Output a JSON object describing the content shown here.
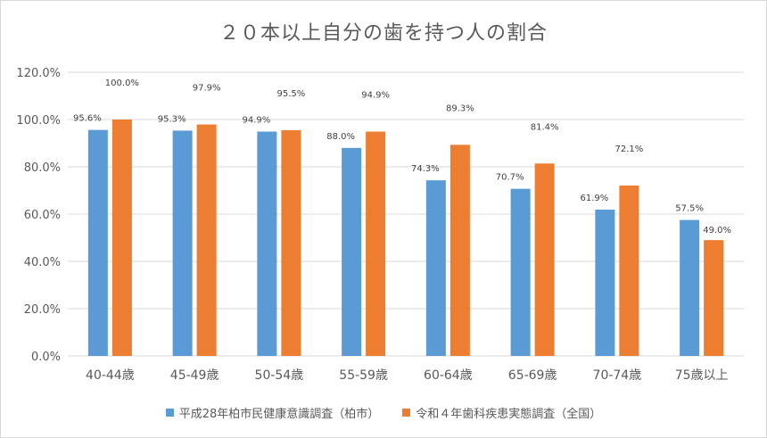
{
  "chart_data": {
    "type": "bar",
    "title": "２０本以上自分の歯を持つ人の割合",
    "categories": [
      "40-44歳",
      "45-49歳",
      "50-54歳",
      "55-59歳",
      "60-64歳",
      "65-69歳",
      "70-74歳",
      "75歳以上"
    ],
    "series": [
      {
        "name": "平成28年柏市民健康意識調査（柏市）",
        "color": "#5b9bd5",
        "values": [
          95.6,
          95.3,
          94.9,
          88.0,
          74.3,
          70.7,
          61.9,
          57.5
        ],
        "labels": [
          "95.6%",
          "95.3%",
          "94.9%",
          "88.0%",
          "74.3%",
          "70.7%",
          "61.9%",
          "57.5%"
        ]
      },
      {
        "name": "令和４年歯科疾患実態調査（全国）",
        "color": "#ed7d31",
        "values": [
          100.0,
          97.9,
          95.5,
          94.9,
          89.3,
          81.4,
          72.1,
          49.0
        ],
        "labels": [
          "100.0%",
          "97.9%",
          "95.5%",
          "94.9%",
          "89.3%",
          "81.4%",
          "72.1%",
          "49.0%"
        ]
      }
    ],
    "ylim": [
      0,
      120
    ],
    "yticks": [
      "0.0%",
      "20.0%",
      "40.0%",
      "60.0%",
      "80.0%",
      "100.0%",
      "120.0%"
    ],
    "grid": true,
    "legend_position": "bottom",
    "xlabel": "",
    "ylabel": ""
  }
}
